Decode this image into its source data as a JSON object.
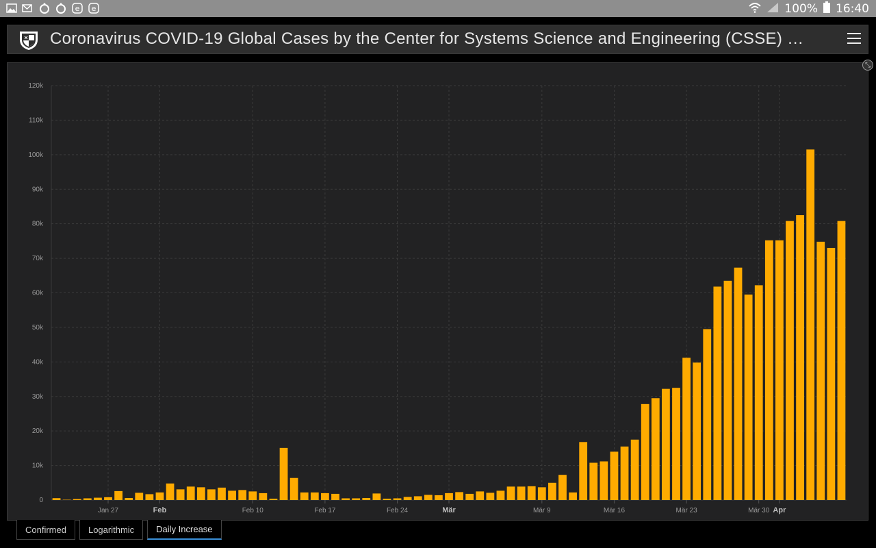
{
  "status_bar": {
    "battery": "100%",
    "time": "16:40",
    "left_icons": [
      "gallery-icon",
      "email-icon",
      "app-icon",
      "app-icon",
      "edge-icon",
      "edge-icon"
    ]
  },
  "header": {
    "title": "Coronavirus COVID-19 Global Cases by the Center for Systems Science and Engineering (CSSE) …"
  },
  "tabs": [
    {
      "label": "Confirmed",
      "active": false
    },
    {
      "label": "Logarithmic",
      "active": false
    },
    {
      "label": "Daily Increase",
      "active": true
    }
  ],
  "colors": {
    "bar": "#ffab00",
    "grid": "#3b3b3b",
    "panel": "#222223"
  },
  "chart_data": {
    "type": "bar",
    "y_ticks": [
      "0",
      "10k",
      "20k",
      "30k",
      "40k",
      "50k",
      "60k",
      "70k",
      "80k",
      "90k",
      "100k",
      "110k",
      "120k"
    ],
    "ylim": [
      0,
      120000
    ],
    "grid": true,
    "x_ticks": [
      {
        "label": "Jan 27",
        "index": 5,
        "bold": false
      },
      {
        "label": "Feb",
        "index": 10,
        "bold": true
      },
      {
        "label": "Feb 10",
        "index": 19,
        "bold": false
      },
      {
        "label": "Feb 17",
        "index": 26,
        "bold": false
      },
      {
        "label": "Feb 24",
        "index": 33,
        "bold": false
      },
      {
        "label": "Mär",
        "index": 38,
        "bold": true
      },
      {
        "label": "Mär 9",
        "index": 47,
        "bold": false
      },
      {
        "label": "Mär 16",
        "index": 54,
        "bold": false
      },
      {
        "label": "Mär 23",
        "index": 61,
        "bold": false
      },
      {
        "label": "Mär 30",
        "index": 68,
        "bold": false
      },
      {
        "label": "Apr",
        "index": 70,
        "bold": true
      }
    ],
    "x_start": "Jan 22",
    "values": [
      550,
      100,
      290,
      500,
      680,
      820,
      2600,
      600,
      2100,
      1700,
      2200,
      4800,
      3100,
      3900,
      3700,
      3100,
      3600,
      2700,
      2900,
      2500,
      2000,
      400,
      15100,
      6400,
      2200,
      2200,
      2000,
      1800,
      500,
      500,
      600,
      1900,
      400,
      500,
      900,
      1100,
      1500,
      1400,
      2000,
      2300,
      1800,
      2500,
      2100,
      2700,
      3900,
      3900,
      4000,
      3700,
      5000,
      7300,
      2200,
      16800,
      10800,
      11200,
      14000,
      15500,
      17500,
      27800,
      29500,
      32200,
      32500,
      41200,
      39800,
      49500,
      61800,
      63500,
      67300,
      59500,
      62200,
      75200,
      75200,
      80800,
      82500,
      101500,
      74800,
      73000,
      80800
    ]
  }
}
